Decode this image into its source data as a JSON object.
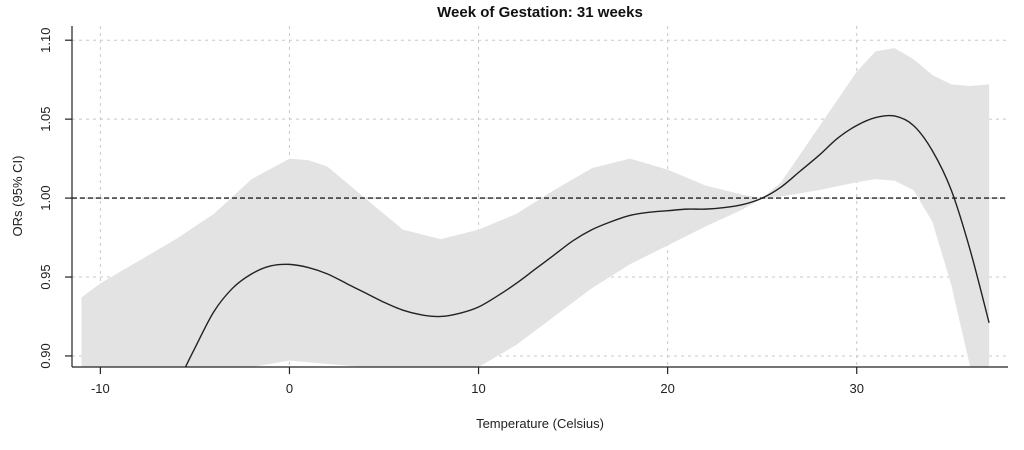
{
  "chart_data": {
    "type": "line",
    "title": "Week of Gestation: 31 weeks",
    "xlabel": "Temperature (Celsius)",
    "ylabel": "ORs (95% CI)",
    "xlim": [
      -11.5,
      38
    ],
    "ylim": [
      0.893,
      1.109
    ],
    "x_ticks": [
      -10,
      0,
      10,
      20,
      30
    ],
    "x_tick_labels": [
      "-10",
      "0",
      "10",
      "20",
      "30"
    ],
    "y_ticks": [
      0.9,
      0.95,
      1.0,
      1.05,
      1.1
    ],
    "y_tick_labels": [
      "0.90",
      "0.95",
      "1.00",
      "1.05",
      "1.10"
    ],
    "grid": true,
    "reference_line": {
      "y": 1.0,
      "style": "dashed"
    },
    "series": [
      {
        "role": "estimate",
        "x": [
          -5.5,
          -5,
          -4,
          -3,
          -2,
          -1,
          0,
          1,
          2,
          3,
          4,
          5,
          6,
          7,
          8,
          9,
          10,
          11,
          12,
          13,
          14,
          15,
          16,
          17,
          18,
          19,
          20,
          21,
          22,
          23,
          24,
          25,
          26,
          27,
          28,
          29,
          30,
          31,
          32,
          33,
          34,
          35,
          36,
          37
        ],
        "y": [
          0.893,
          0.905,
          0.928,
          0.943,
          0.952,
          0.957,
          0.958,
          0.956,
          0.952,
          0.946,
          0.94,
          0.934,
          0.929,
          0.926,
          0.925,
          0.927,
          0.931,
          0.938,
          0.946,
          0.955,
          0.964,
          0.973,
          0.98,
          0.985,
          0.989,
          0.991,
          0.992,
          0.993,
          0.993,
          0.994,
          0.996,
          1.0,
          1.007,
          1.017,
          1.027,
          1.038,
          1.046,
          1.051,
          1.052,
          1.046,
          1.03,
          1.005,
          0.967,
          0.921
        ]
      }
    ],
    "confidence_band": {
      "x": [
        -11,
        -10,
        -8,
        -6,
        -4,
        -2,
        0,
        1,
        2,
        4,
        6,
        8,
        10,
        12,
        14,
        16,
        18,
        20,
        22,
        24,
        25,
        26,
        28,
        30,
        31,
        32,
        33,
        34,
        35,
        36,
        37
      ],
      "upper": [
        0.937,
        0.946,
        0.96,
        0.974,
        0.99,
        1.012,
        1.025,
        1.024,
        1.02,
        1.0,
        0.98,
        0.974,
        0.98,
        0.99,
        1.005,
        1.019,
        1.025,
        1.018,
        1.008,
        1.002,
        1.0,
        1.01,
        1.045,
        1.08,
        1.093,
        1.095,
        1.088,
        1.078,
        1.072,
        1.071,
        1.072
      ],
      "lower": [
        0.893,
        0.893,
        0.893,
        0.893,
        0.893,
        0.893,
        0.897,
        0.896,
        0.895,
        0.893,
        0.893,
        0.893,
        0.893,
        0.907,
        0.925,
        0.943,
        0.958,
        0.97,
        0.982,
        0.993,
        1.0,
        1.001,
        1.005,
        1.01,
        1.012,
        1.011,
        1.005,
        0.985,
        0.945,
        0.893,
        0.893
      ]
    }
  }
}
